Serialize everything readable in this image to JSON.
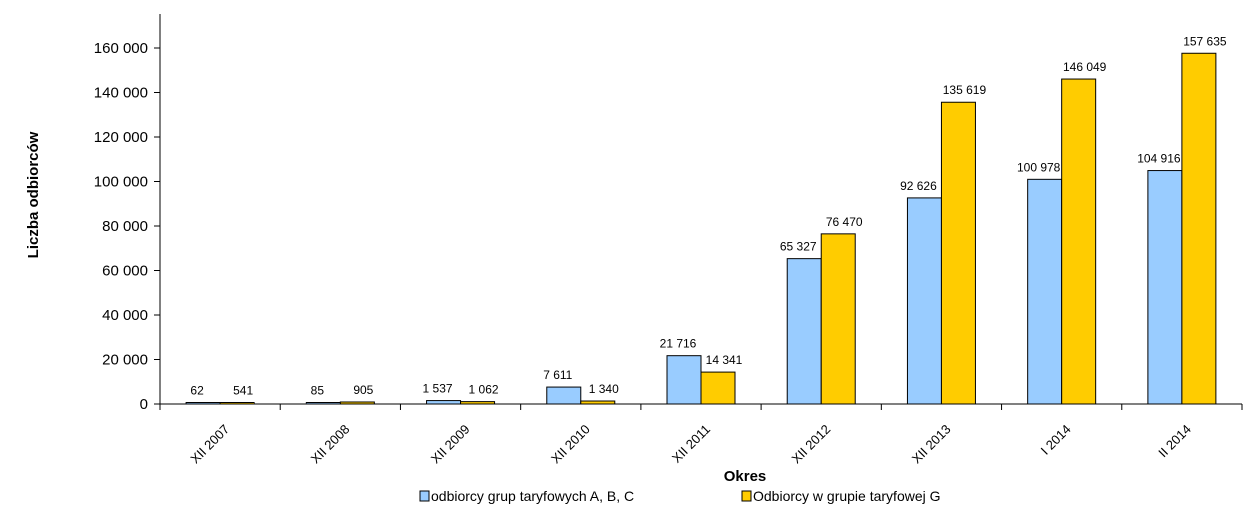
{
  "chart_data": {
    "type": "bar",
    "title": "",
    "xlabel": "Okres",
    "ylabel": "Liczba odbiorców",
    "categories": [
      "XII 2007",
      "XII 2008",
      "XII 2009",
      "XII 2010",
      "XII 2011",
      "XII 2012",
      "XII 2013",
      "I 2014",
      "II 2014"
    ],
    "series": [
      {
        "name": "odbiorcy grup taryfowych A, B, C",
        "color": "#99ccff",
        "values": [
          62,
          85,
          1537,
          7611,
          21716,
          65327,
          92626,
          100978,
          104916
        ],
        "labels": [
          "62",
          "85",
          "1 537",
          "7 611",
          "21 716",
          "65 327",
          "92 626",
          "100 978",
          "104 916"
        ]
      },
      {
        "name": "Odbiorcy w grupie taryfowej G",
        "color": "#ffcc00",
        "values": [
          541,
          905,
          1062,
          1340,
          14341,
          76470,
          135619,
          146049,
          157635
        ],
        "labels": [
          "541",
          "905",
          "1 062",
          "1 340",
          "14 341",
          "76 470",
          "135 619",
          "146 049",
          "157 635"
        ]
      }
    ],
    "ylim": [
      0,
      160000
    ],
    "yticks": [
      0,
      20000,
      40000,
      60000,
      80000,
      100000,
      120000,
      140000,
      160000
    ],
    "ytick_labels": [
      "0",
      "20 000",
      "40 000",
      "60 000",
      "80 000",
      "100 000",
      "120 000",
      "140 000",
      "160 000"
    ],
    "grid": false,
    "legend_position": "bottom"
  }
}
